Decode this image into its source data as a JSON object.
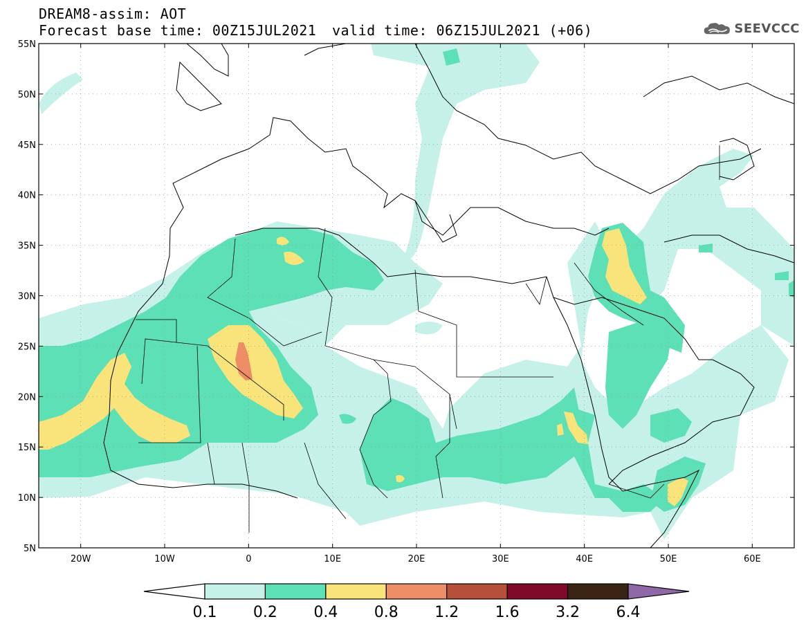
{
  "header": {
    "title": "DREAM8-assim: AOT",
    "base_time": "Forecast base time: 00Z15JUL2021",
    "valid_time": "valid time: 06Z15JUL2021 (+06)",
    "logo_text": "SEEVCCC",
    "logo_icon": "cloud-icon"
  },
  "map": {
    "lon_range": [
      -25,
      65
    ],
    "lat_range": [
      5,
      55
    ],
    "lat_ticks": [
      {
        "value": 55,
        "label": "55N"
      },
      {
        "value": 50,
        "label": "50N"
      },
      {
        "value": 45,
        "label": "45N"
      },
      {
        "value": 40,
        "label": "40N"
      },
      {
        "value": 35,
        "label": "35N"
      },
      {
        "value": 30,
        "label": "30N"
      },
      {
        "value": 25,
        "label": "25N"
      },
      {
        "value": 20,
        "label": "20N"
      },
      {
        "value": 15,
        "label": "15N"
      },
      {
        "value": 10,
        "label": "10N"
      },
      {
        "value": 5,
        "label": "5N"
      }
    ],
    "lon_ticks": [
      {
        "value": -20,
        "label": "20W"
      },
      {
        "value": -10,
        "label": "10W"
      },
      {
        "value": 0,
        "label": "0"
      },
      {
        "value": 10,
        "label": "10E"
      },
      {
        "value": 20,
        "label": "20E"
      },
      {
        "value": 30,
        "label": "30E"
      },
      {
        "value": 40,
        "label": "40E"
      },
      {
        "value": 50,
        "label": "50E"
      },
      {
        "value": 60,
        "label": "60E"
      }
    ]
  },
  "colorbar": {
    "colors": [
      "#ffffff",
      "#c6f1e9",
      "#5ee0b7",
      "#f8e47a",
      "#ec8d66",
      "#b5503a",
      "#7f0a2a",
      "#3a2414",
      "#8f68a8"
    ],
    "labels": [
      "0.1",
      "0.2",
      "0.4",
      "0.8",
      "1.2",
      "1.6",
      "3.2",
      "6.4"
    ]
  }
}
